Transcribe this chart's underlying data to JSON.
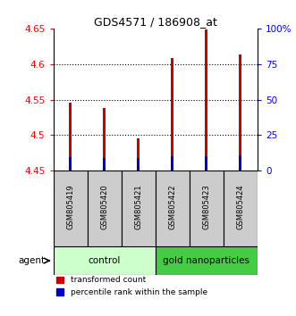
{
  "title": "GDS4571 / 186908_at",
  "categories": [
    "GSM805419",
    "GSM805420",
    "GSM805421",
    "GSM805422",
    "GSM805423",
    "GSM805424"
  ],
  "red_tops": [
    4.545,
    4.538,
    4.495,
    4.608,
    4.648,
    4.613
  ],
  "blue_tops": [
    4.469,
    4.468,
    4.468,
    4.47,
    4.47,
    4.471
  ],
  "bar_base": 4.45,
  "ylim": [
    4.45,
    4.65
  ],
  "yticks_left": [
    4.45,
    4.5,
    4.55,
    4.6,
    4.65
  ],
  "yticks_right": [
    0,
    25,
    50,
    75,
    100
  ],
  "ytick_labels_right": [
    "0",
    "25",
    "50",
    "75",
    "100%"
  ],
  "bar_width": 0.08,
  "red_color": "#cc0000",
  "blue_color": "#0000cc",
  "control_color": "#ccffcc",
  "nano_color": "#44cc44",
  "sample_box_color": "#cccccc",
  "agent_label": "agent",
  "control_label": "control",
  "nano_label": "gold nanoparticles",
  "legend_red": "transformed count",
  "legend_blue": "percentile rank within the sample",
  "figsize": [
    3.31,
    3.54
  ],
  "dpi": 100
}
